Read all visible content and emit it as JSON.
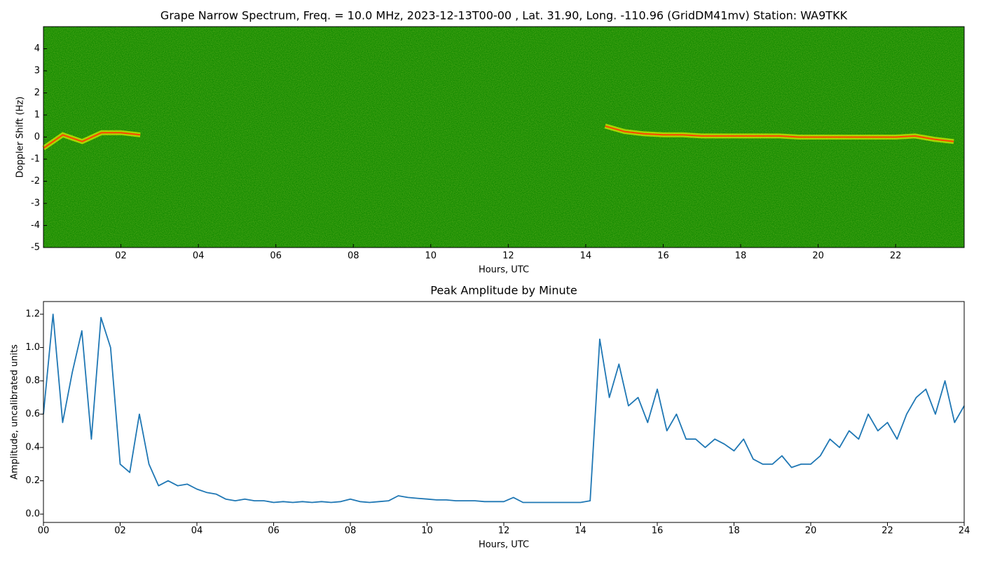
{
  "chart_data": [
    {
      "type": "spectrogram",
      "title": "Grape Narrow Spectrum, Freq. = 10.0 MHz, 2023-12-13T00-00 , Lat.  31.90, Long. -110.96 (GridDM41mv) Station: WA9TKK",
      "xlabel": "Hours, UTC",
      "ylabel": "Doppler Shift (Hz)",
      "x": [
        0,
        0.5,
        1,
        1.5,
        2,
        2.5,
        3,
        3.5,
        4,
        4.5,
        5,
        5.5,
        6,
        6.5,
        7,
        7.5,
        8,
        8.5,
        9,
        9.5,
        10,
        10.5,
        11,
        11.5,
        12,
        12.5,
        13,
        13.5,
        14,
        14.5,
        15,
        15.5,
        16,
        16.5,
        17,
        17.5,
        18,
        18.5,
        19,
        19.5,
        20,
        20.5,
        21,
        21.5,
        22,
        22.5,
        23,
        23.5
      ],
      "values": [
        -0.5,
        0.1,
        -0.2,
        0.2,
        0.2,
        0.1,
        null,
        null,
        null,
        null,
        null,
        null,
        null,
        null,
        null,
        null,
        null,
        null,
        null,
        null,
        null,
        null,
        null,
        null,
        null,
        null,
        null,
        null,
        null,
        0.5,
        0.25,
        0.15,
        0.1,
        0.1,
        0.05,
        0.05,
        0.05,
        0.05,
        0.05,
        0,
        0,
        0,
        0,
        0,
        0,
        0.05,
        -0.1,
        -0.2
      ],
      "color": "#ff4500",
      "background_color": "#138a00",
      "xlim": [
        0,
        23.77
      ],
      "ylim": [
        -5,
        5
      ],
      "xticks": [
        {
          "value": 2,
          "label": "02"
        },
        {
          "value": 4,
          "label": "04"
        },
        {
          "value": 6,
          "label": "06"
        },
        {
          "value": 8,
          "label": "08"
        },
        {
          "value": 10,
          "label": "10"
        },
        {
          "value": 12,
          "label": "12"
        },
        {
          "value": 14,
          "label": "14"
        },
        {
          "value": 16,
          "label": "16"
        },
        {
          "value": 18,
          "label": "18"
        },
        {
          "value": 20,
          "label": "20"
        },
        {
          "value": 22,
          "label": "22"
        }
      ],
      "yticks": [
        -5,
        -4,
        -3,
        -2,
        -1,
        0,
        1,
        2,
        3,
        4
      ]
    },
    {
      "type": "line",
      "title": "Peak Amplitude by Minute",
      "xlabel": "Hours, UTC",
      "ylabel": "Amplitude, uncalibrated units",
      "x": [
        0,
        0.25,
        0.5,
        0.75,
        1,
        1.25,
        1.5,
        1.75,
        2,
        2.25,
        2.5,
        2.75,
        3,
        3.25,
        3.5,
        3.75,
        4,
        4.25,
        4.5,
        4.75,
        5,
        5.25,
        5.5,
        5.75,
        6,
        6.25,
        6.5,
        6.75,
        7,
        7.25,
        7.5,
        7.75,
        8,
        8.25,
        8.5,
        8.75,
        9,
        9.25,
        9.5,
        9.75,
        10,
        10.25,
        10.5,
        10.75,
        11,
        11.25,
        11.5,
        11.75,
        12,
        12.25,
        12.5,
        12.75,
        13,
        13.25,
        13.5,
        13.75,
        14,
        14.25,
        14.5,
        14.75,
        15,
        15.25,
        15.5,
        15.75,
        16,
        16.25,
        16.5,
        16.75,
        17,
        17.25,
        17.5,
        17.75,
        18,
        18.25,
        18.5,
        18.75,
        19,
        19.25,
        19.5,
        19.75,
        20,
        20.25,
        20.5,
        20.75,
        21,
        21.25,
        21.5,
        21.75,
        22,
        22.25,
        22.5,
        22.75,
        23,
        23.25,
        23.5,
        23.75,
        24
      ],
      "values": [
        0.6,
        1.2,
        0.55,
        0.85,
        1.1,
        0.45,
        1.18,
        1.0,
        0.3,
        0.25,
        0.6,
        0.3,
        0.17,
        0.2,
        0.17,
        0.18,
        0.15,
        0.13,
        0.12,
        0.09,
        0.08,
        0.09,
        0.08,
        0.08,
        0.07,
        0.075,
        0.07,
        0.075,
        0.07,
        0.075,
        0.07,
        0.075,
        0.09,
        0.075,
        0.07,
        0.075,
        0.08,
        0.11,
        0.1,
        0.095,
        0.09,
        0.085,
        0.085,
        0.08,
        0.08,
        0.08,
        0.075,
        0.075,
        0.075,
        0.1,
        0.07,
        0.07,
        0.07,
        0.07,
        0.07,
        0.07,
        0.07,
        0.08,
        1.05,
        0.7,
        0.9,
        0.65,
        0.7,
        0.55,
        0.75,
        0.5,
        0.6,
        0.45,
        0.45,
        0.4,
        0.45,
        0.42,
        0.38,
        0.45,
        0.33,
        0.3,
        0.3,
        0.35,
        0.28,
        0.3,
        0.3,
        0.35,
        0.45,
        0.4,
        0.5,
        0.45,
        0.6,
        0.5,
        0.55,
        0.45,
        0.6,
        0.7,
        0.75,
        0.6,
        0.8,
        0.55,
        0.65
      ],
      "color": "#1f77b4",
      "xlim": [
        0,
        24
      ],
      "ylim": [
        -0.05,
        1.276
      ],
      "xticks": [
        {
          "value": 0,
          "label": "00"
        },
        {
          "value": 2,
          "label": "02"
        },
        {
          "value": 4,
          "label": "04"
        },
        {
          "value": 6,
          "label": "06"
        },
        {
          "value": 8,
          "label": "08"
        },
        {
          "value": 10,
          "label": "10"
        },
        {
          "value": 12,
          "label": "12"
        },
        {
          "value": 14,
          "label": "14"
        },
        {
          "value": 16,
          "label": "16"
        },
        {
          "value": 18,
          "label": "18"
        },
        {
          "value": 20,
          "label": "20"
        },
        {
          "value": 22,
          "label": "22"
        },
        {
          "value": 24,
          "label": "24"
        }
      ],
      "yticks": [
        {
          "value": 0,
          "label": "0.0"
        },
        0.2,
        0.4,
        0.6,
        0.8,
        {
          "value": 1,
          "label": "1.0"
        },
        1.2
      ]
    }
  ]
}
